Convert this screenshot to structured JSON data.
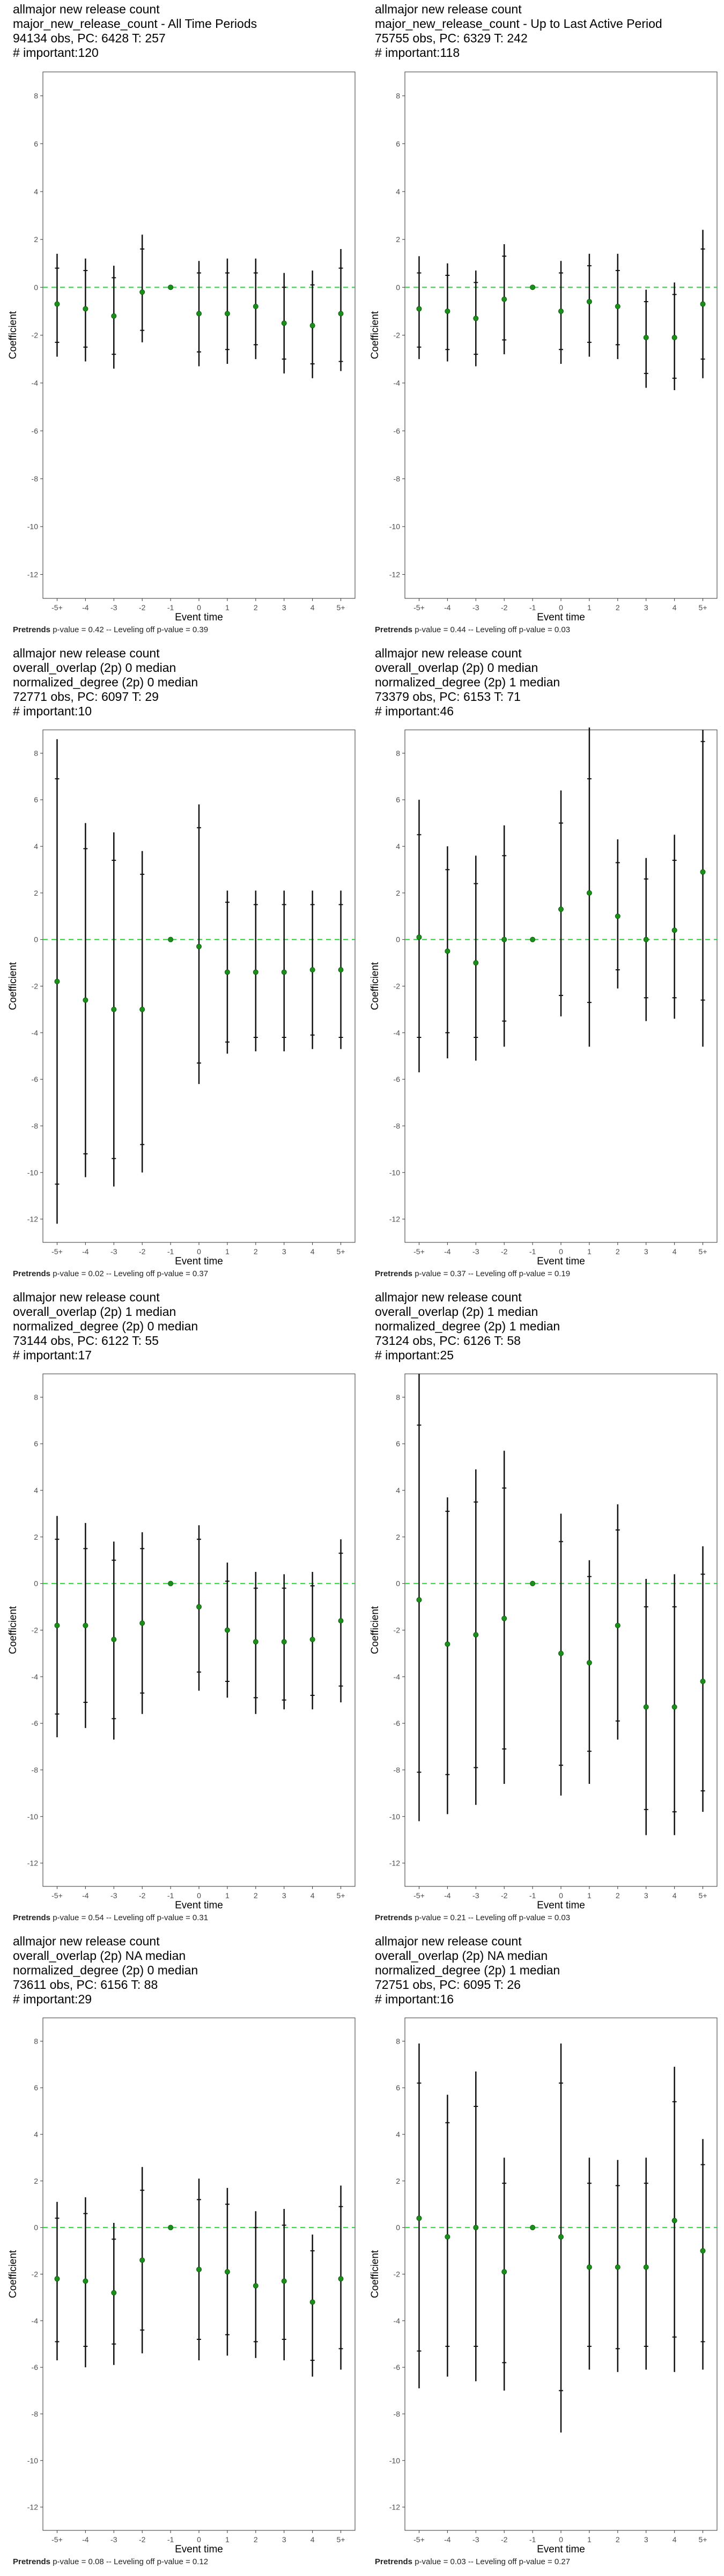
{
  "x_label": "Event time",
  "y_label": "Coefficient",
  "chart_data": [
    {
      "type": "errorbar",
      "title_lines": [
        "allmajor new release count",
        "major_new_release_count - All Time Periods",
        "94134 obs, PC: 6428 T: 257",
        "# important:120"
      ],
      "categories": [
        "-5+",
        "-4",
        "-3",
        "-2",
        "-1",
        "0",
        "1",
        "2",
        "3",
        "4",
        "5+"
      ],
      "y": [
        -0.7,
        -0.9,
        -1.2,
        -0.2,
        0,
        -1.1,
        -1.1,
        -0.8,
        -1.5,
        -1.6,
        -1.1
      ],
      "ci_outer": [
        [
          -2.9,
          1.4
        ],
        [
          -3.1,
          1.2
        ],
        [
          -3.4,
          0.9
        ],
        [
          -2.3,
          2.2
        ],
        null,
        [
          -3.3,
          1.1
        ],
        [
          -3.2,
          1.2
        ],
        [
          -3.0,
          1.2
        ],
        [
          -3.6,
          0.6
        ],
        [
          -3.8,
          0.7
        ],
        [
          -3.5,
          1.6
        ]
      ],
      "ci_inner": [
        [
          -2.3,
          0.8
        ],
        [
          -2.5,
          0.7
        ],
        [
          -2.8,
          0.4
        ],
        [
          -1.8,
          1.6
        ],
        null,
        [
          -2.7,
          0.6
        ],
        [
          -2.6,
          0.6
        ],
        [
          -2.4,
          0.6
        ],
        [
          -3.0,
          0.0
        ],
        [
          -3.2,
          0.1
        ],
        [
          -3.1,
          0.8
        ]
      ],
      "ylim": [
        -13,
        9
      ],
      "yticks": [
        8,
        6,
        4,
        2,
        0,
        -2,
        -4,
        -6,
        -8,
        -10,
        -12
      ],
      "footer_bold": "Pretrends",
      "footer_rest": " p-value = 0.42 -- Leveling off p-value = 0.39"
    },
    {
      "type": "errorbar",
      "title_lines": [
        "allmajor new release count",
        "major_new_release_count - Up to Last Active Period",
        "75755 obs, PC: 6329 T: 242",
        "# important:118"
      ],
      "categories": [
        "-5+",
        "-4",
        "-3",
        "-2",
        "-1",
        "0",
        "1",
        "2",
        "3",
        "4",
        "5+"
      ],
      "y": [
        -0.9,
        -1.0,
        -1.3,
        -0.5,
        0,
        -1.0,
        -0.6,
        -0.8,
        -2.1,
        -2.1,
        -0.7
      ],
      "ci_outer": [
        [
          -3.0,
          1.3
        ],
        [
          -3.1,
          1.0
        ],
        [
          -3.3,
          0.7
        ],
        [
          -2.8,
          1.8
        ],
        null,
        [
          -3.2,
          1.1
        ],
        [
          -2.9,
          1.4
        ],
        [
          -3.0,
          1.4
        ],
        [
          -4.2,
          -0.1
        ],
        [
          -4.3,
          0.2
        ],
        [
          -3.8,
          2.4
        ]
      ],
      "ci_inner": [
        [
          -2.5,
          0.6
        ],
        [
          -2.6,
          0.5
        ],
        [
          -2.8,
          0.2
        ],
        [
          -2.2,
          1.3
        ],
        null,
        [
          -2.6,
          0.6
        ],
        [
          -2.3,
          0.9
        ],
        [
          -2.4,
          0.7
        ],
        [
          -3.6,
          -0.6
        ],
        [
          -3.8,
          -0.3
        ],
        [
          -3.0,
          1.6
        ]
      ],
      "ylim": [
        -13,
        9
      ],
      "yticks": [
        8,
        6,
        4,
        2,
        0,
        -2,
        -4,
        -6,
        -8,
        -10,
        -12
      ],
      "footer_bold": "Pretrends",
      "footer_rest": " p-value = 0.44 -- Leveling off p-value = 0.03"
    },
    {
      "type": "errorbar",
      "title_lines": [
        "allmajor new release count",
        "overall_overlap (2p) 0 median",
        "normalized_degree (2p) 0 median",
        "72771 obs, PC: 6097 T: 29",
        "# important:10"
      ],
      "categories": [
        "-5+",
        "-4",
        "-3",
        "-2",
        "-1",
        "0",
        "1",
        "2",
        "3",
        "4",
        "5+"
      ],
      "y": [
        -1.8,
        -2.6,
        -3.0,
        -3.0,
        0,
        -0.3,
        -1.4,
        -1.4,
        -1.4,
        -1.3,
        -1.3
      ],
      "ci_outer": [
        [
          -12.2,
          8.6
        ],
        [
          -10.2,
          5.0
        ],
        [
          -10.6,
          4.6
        ],
        [
          -10.0,
          3.8
        ],
        null,
        [
          -6.2,
          5.8
        ],
        [
          -4.9,
          2.1
        ],
        [
          -4.8,
          2.1
        ],
        [
          -4.8,
          2.1
        ],
        [
          -4.7,
          2.1
        ],
        [
          -4.7,
          2.1
        ]
      ],
      "ci_inner": [
        [
          -10.5,
          6.9
        ],
        [
          -9.2,
          3.9
        ],
        [
          -9.4,
          3.4
        ],
        [
          -8.8,
          2.8
        ],
        null,
        [
          -5.3,
          4.8
        ],
        [
          -4.4,
          1.6
        ],
        [
          -4.2,
          1.5
        ],
        [
          -4.2,
          1.5
        ],
        [
          -4.1,
          1.5
        ],
        [
          -4.2,
          1.5
        ]
      ],
      "ylim": [
        -13,
        9
      ],
      "yticks": [
        8,
        6,
        4,
        2,
        0,
        -2,
        -4,
        -6,
        -8,
        -10,
        -12
      ],
      "footer_bold": "Pretrends",
      "footer_rest": " p-value = 0.02 -- Leveling off p-value = 0.37"
    },
    {
      "type": "errorbar",
      "title_lines": [
        "allmajor new release count",
        "overall_overlap (2p) 0 median",
        "normalized_degree (2p) 1 median",
        "73379 obs, PC: 6153 T: 71",
        "# important:46"
      ],
      "categories": [
        "-5+",
        "-4",
        "-3",
        "-2",
        "-1",
        "0",
        "1",
        "2",
        "3",
        "4",
        "5+"
      ],
      "y": [
        0.1,
        -0.5,
        -1.0,
        0.0,
        0,
        1.3,
        2.0,
        1.0,
        0.0,
        0.4,
        2.9
      ],
      "ci_outer": [
        [
          -5.7,
          6.0
        ],
        [
          -5.1,
          4.0
        ],
        [
          -5.2,
          3.6
        ],
        [
          -4.6,
          4.9
        ],
        null,
        [
          -3.3,
          6.4
        ],
        [
          -4.6,
          9.1
        ],
        [
          -2.1,
          4.3
        ],
        [
          -3.5,
          3.5
        ],
        [
          -3.4,
          4.5
        ],
        [
          -4.6,
          9.0
        ]
      ],
      "ci_inner": [
        [
          -4.2,
          4.5
        ],
        [
          -4.0,
          3.0
        ],
        [
          -4.2,
          2.4
        ],
        [
          -3.5,
          3.6
        ],
        null,
        [
          -2.4,
          5.0
        ],
        [
          -2.7,
          6.9
        ],
        [
          -1.3,
          3.3
        ],
        [
          -2.5,
          2.6
        ],
        [
          -2.5,
          3.4
        ],
        [
          -2.6,
          8.5
        ]
      ],
      "ylim": [
        -13,
        9
      ],
      "yticks": [
        8,
        6,
        4,
        2,
        0,
        -2,
        -4,
        -6,
        -8,
        -10,
        -12
      ],
      "footer_bold": "Pretrends",
      "footer_rest": " p-value = 0.37 -- Leveling off p-value = 0.19"
    },
    {
      "type": "errorbar",
      "title_lines": [
        "allmajor new release count",
        "overall_overlap (2p) 1 median",
        "normalized_degree (2p) 0 median",
        "73144 obs, PC: 6122 T: 55",
        "# important:17"
      ],
      "categories": [
        "-5+",
        "-4",
        "-3",
        "-2",
        "-1",
        "0",
        "1",
        "2",
        "3",
        "4",
        "5+"
      ],
      "y": [
        -1.8,
        -1.8,
        -2.4,
        -1.7,
        0,
        -1.0,
        -2.0,
        -2.5,
        -2.5,
        -2.4,
        -1.6
      ],
      "ci_outer": [
        [
          -6.6,
          2.9
        ],
        [
          -6.2,
          2.6
        ],
        [
          -6.7,
          1.8
        ],
        [
          -5.6,
          2.2
        ],
        null,
        [
          -4.6,
          2.5
        ],
        [
          -4.9,
          0.9
        ],
        [
          -5.6,
          0.5
        ],
        [
          -5.4,
          0.4
        ],
        [
          -5.4,
          0.5
        ],
        [
          -5.1,
          1.9
        ]
      ],
      "ci_inner": [
        [
          -5.6,
          1.9
        ],
        [
          -5.1,
          1.5
        ],
        [
          -5.8,
          1.0
        ],
        [
          -4.7,
          1.5
        ],
        null,
        [
          -3.8,
          1.9
        ],
        [
          -4.2,
          0.1
        ],
        [
          -4.9,
          -0.2
        ],
        [
          -5.0,
          -0.2
        ],
        [
          -4.8,
          -0.1
        ],
        [
          -4.4,
          1.3
        ]
      ],
      "ylim": [
        -13,
        9
      ],
      "yticks": [
        8,
        6,
        4,
        2,
        0,
        -2,
        -4,
        -6,
        -8,
        -10,
        -12
      ],
      "footer_bold": "Pretrends",
      "footer_rest": " p-value = 0.54 -- Leveling off p-value = 0.31"
    },
    {
      "type": "errorbar",
      "title_lines": [
        "allmajor new release count",
        "overall_overlap (2p) 1 median",
        "normalized_degree (2p) 1 median",
        "73124 obs, PC: 6126 T: 58",
        "# important:25"
      ],
      "categories": [
        "-5+",
        "-4",
        "-3",
        "-2",
        "-1",
        "0",
        "1",
        "2",
        "3",
        "4",
        "5+"
      ],
      "y": [
        -0.7,
        -2.6,
        -2.2,
        -1.5,
        0,
        -3.0,
        -3.4,
        -1.8,
        -5.3,
        -5.3,
        -4.2
      ],
      "ci_outer": [
        [
          -10.2,
          9.0
        ],
        [
          -9.9,
          3.7
        ],
        [
          -9.5,
          4.9
        ],
        [
          -8.6,
          5.7
        ],
        null,
        [
          -9.1,
          3.0
        ],
        [
          -8.6,
          1.0
        ],
        [
          -6.7,
          3.4
        ],
        [
          -10.8,
          0.2
        ],
        [
          -10.8,
          0.4
        ],
        [
          -9.8,
          1.6
        ]
      ],
      "ci_inner": [
        [
          -8.1,
          6.8
        ],
        [
          -8.2,
          3.1
        ],
        [
          -7.9,
          3.5
        ],
        [
          -7.1,
          4.1
        ],
        null,
        [
          -7.8,
          1.8
        ],
        [
          -7.2,
          0.3
        ],
        [
          -5.9,
          2.3
        ],
        [
          -9.7,
          -1.0
        ],
        [
          -9.8,
          -1.0
        ],
        [
          -8.9,
          0.4
        ]
      ],
      "ylim": [
        -13,
        9
      ],
      "yticks": [
        8,
        6,
        4,
        2,
        0,
        -2,
        -4,
        -6,
        -8,
        -10,
        -12
      ],
      "footer_bold": "Pretrends",
      "footer_rest": " p-value = 0.21 -- Leveling off p-value = 0.03"
    },
    {
      "type": "errorbar",
      "title_lines": [
        "allmajor new release count",
        "overall_overlap (2p) NA median",
        "normalized_degree (2p) 0 median",
        "73611 obs, PC: 6156 T: 88",
        "# important:29"
      ],
      "categories": [
        "-5+",
        "-4",
        "-3",
        "-2",
        "-1",
        "0",
        "1",
        "2",
        "3",
        "4",
        "5+"
      ],
      "y": [
        -2.2,
        -2.3,
        -2.8,
        -1.4,
        0,
        -1.8,
        -1.9,
        -2.5,
        -2.3,
        -3.2,
        -2.2
      ],
      "ci_outer": [
        [
          -5.7,
          1.1
        ],
        [
          -6.0,
          1.3
        ],
        [
          -5.9,
          0.2
        ],
        [
          -5.4,
          2.6
        ],
        null,
        [
          -5.7,
          2.1
        ],
        [
          -5.5,
          1.7
        ],
        [
          -5.6,
          0.7
        ],
        [
          -5.7,
          0.8
        ],
        [
          -6.4,
          -0.3
        ],
        [
          -6.1,
          1.8
        ]
      ],
      "ci_inner": [
        [
          -4.9,
          0.4
        ],
        [
          -5.1,
          0.6
        ],
        [
          -5.0,
          -0.5
        ],
        [
          -4.4,
          1.6
        ],
        null,
        [
          -4.8,
          1.2
        ],
        [
          -4.6,
          1.0
        ],
        [
          -4.9,
          0.0
        ],
        [
          -4.8,
          0.1
        ],
        [
          -5.7,
          -1.0
        ],
        [
          -5.2,
          0.9
        ]
      ],
      "ylim": [
        -13,
        9
      ],
      "yticks": [
        8,
        6,
        4,
        2,
        0,
        -2,
        -4,
        -6,
        -8,
        -10,
        -12
      ],
      "footer_bold": "Pretrends",
      "footer_rest": " p-value = 0.08 -- Leveling off p-value = 0.12"
    },
    {
      "type": "errorbar",
      "title_lines": [
        "allmajor new release count",
        "overall_overlap (2p) NA median",
        "normalized_degree (2p) 1 median",
        "72751 obs, PC: 6095 T: 26",
        "# important:16"
      ],
      "categories": [
        "-5+",
        "-4",
        "-3",
        "-2",
        "-1",
        "0",
        "1",
        "2",
        "3",
        "4",
        "5+"
      ],
      "y": [
        0.4,
        -0.4,
        0.0,
        -1.9,
        0,
        -0.4,
        -1.7,
        -1.7,
        -1.7,
        0.3,
        -1.0
      ],
      "ci_outer": [
        [
          -6.9,
          7.9
        ],
        [
          -6.4,
          5.7
        ],
        [
          -6.6,
          6.7
        ],
        [
          -7.0,
          3.0
        ],
        null,
        [
          -8.8,
          7.9
        ],
        [
          -6.1,
          3.0
        ],
        [
          -6.2,
          2.9
        ],
        [
          -6.1,
          3.0
        ],
        [
          -6.2,
          6.9
        ],
        [
          -6.1,
          3.8
        ]
      ],
      "ci_inner": [
        [
          -5.3,
          6.2
        ],
        [
          -5.1,
          4.5
        ],
        [
          -5.1,
          5.2
        ],
        [
          -5.8,
          1.9
        ],
        null,
        [
          -7.0,
          6.2
        ],
        [
          -5.1,
          1.9
        ],
        [
          -5.2,
          1.8
        ],
        [
          -5.1,
          1.9
        ],
        [
          -4.7,
          5.4
        ],
        [
          -4.9,
          2.7
        ]
      ],
      "ylim": [
        -13,
        9
      ],
      "yticks": [
        8,
        6,
        4,
        2,
        0,
        -2,
        -4,
        -6,
        -8,
        -10,
        -12
      ],
      "footer_bold": "Pretrends",
      "footer_rest": " p-value = 0.03 -- Leveling off p-value = 0.27"
    }
  ]
}
